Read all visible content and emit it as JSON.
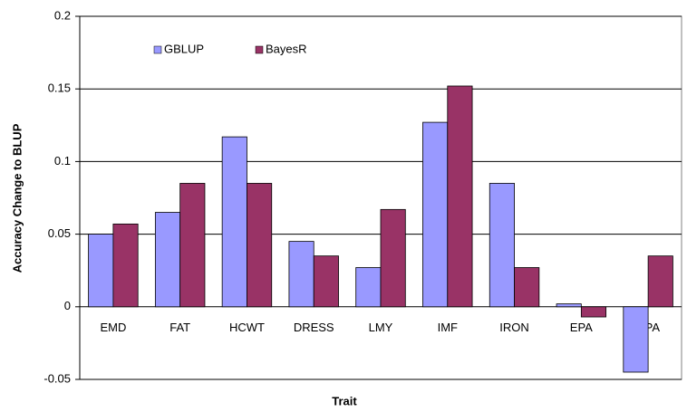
{
  "chart_data": {
    "type": "bar",
    "x_label": "Trait",
    "y_label": "Accuracy Change to BLUP",
    "categories": [
      "EMD",
      "FAT",
      "HCWT",
      "DRESS",
      "LMY",
      "IMF",
      "IRON",
      "EPA",
      "DPA"
    ],
    "series": [
      {
        "name": "GBLUP",
        "color": "#9999ff",
        "values": [
          0.05,
          0.065,
          0.117,
          0.045,
          0.027,
          0.127,
          0.085,
          0.002,
          -0.045
        ]
      },
      {
        "name": "BayesR",
        "color": "#993366",
        "values": [
          0.057,
          0.085,
          0.085,
          0.035,
          0.067,
          0.152,
          0.027,
          -0.007,
          0.035
        ]
      }
    ],
    "ylim": [
      -0.05,
      0.2
    ],
    "yticks": [
      -0.05,
      0,
      0.05,
      0.1,
      0.15,
      0.2
    ],
    "grid": true,
    "legend": "top-left"
  }
}
